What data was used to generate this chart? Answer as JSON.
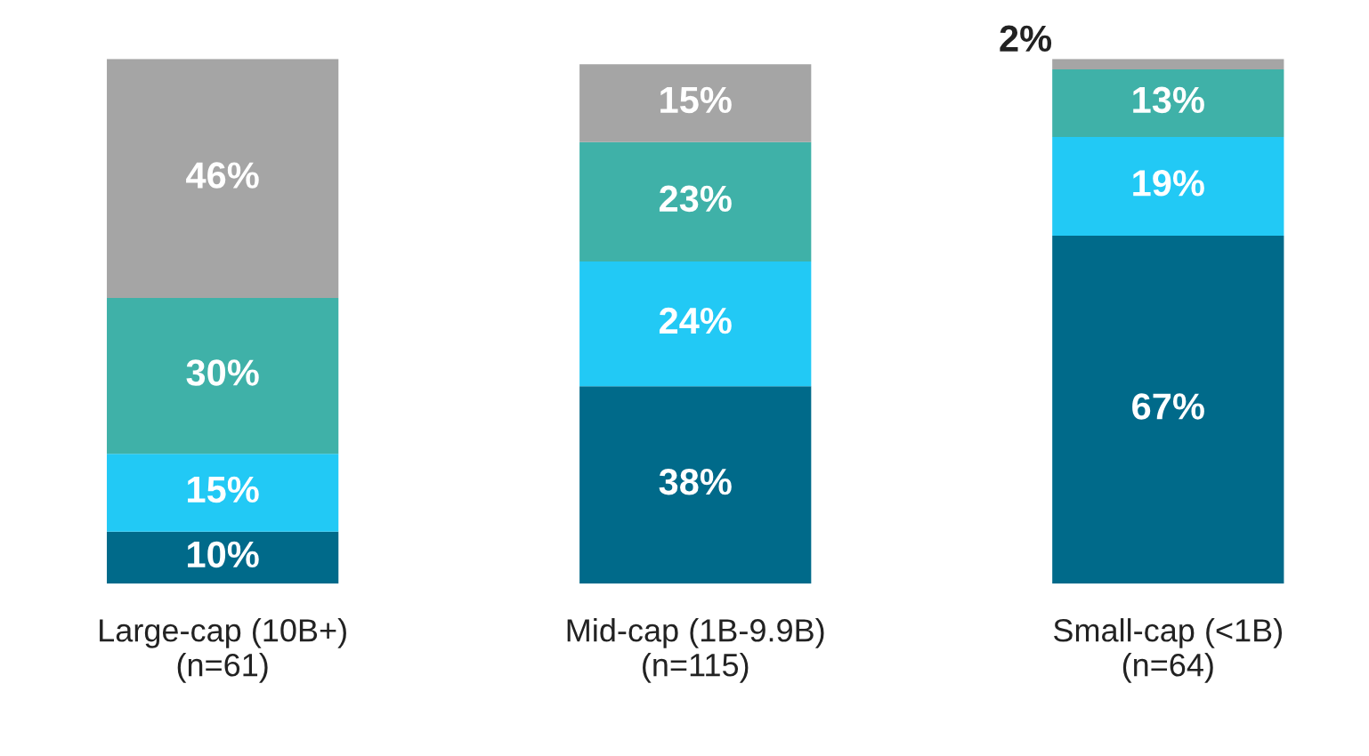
{
  "chart_data": {
    "type": "bar",
    "stacked": true,
    "categories": [
      "Large-cap (10B+)\n(n=61)",
      "Mid-cap (1B-9.9B)\n(n=115)",
      "Small-cap (<1B)\n(n=64)"
    ],
    "series": [
      {
        "color": "#006a8a",
        "values": [
          10,
          38,
          67
        ],
        "value_labels": [
          "10%",
          "38%",
          "67%"
        ]
      },
      {
        "color": "#22c9f5",
        "values": [
          15,
          24,
          19
        ],
        "value_labels": [
          "15%",
          "24%",
          "19%"
        ]
      },
      {
        "color": "#3fb1a8",
        "values": [
          30,
          23,
          13
        ],
        "value_labels": [
          "30%",
          "23%",
          "13%"
        ]
      },
      {
        "color": "#a5a5a5",
        "values": [
          46,
          15,
          2
        ],
        "value_labels": [
          "46%",
          "15%",
          "2%"
        ]
      }
    ],
    "grid": false,
    "legend": false
  }
}
